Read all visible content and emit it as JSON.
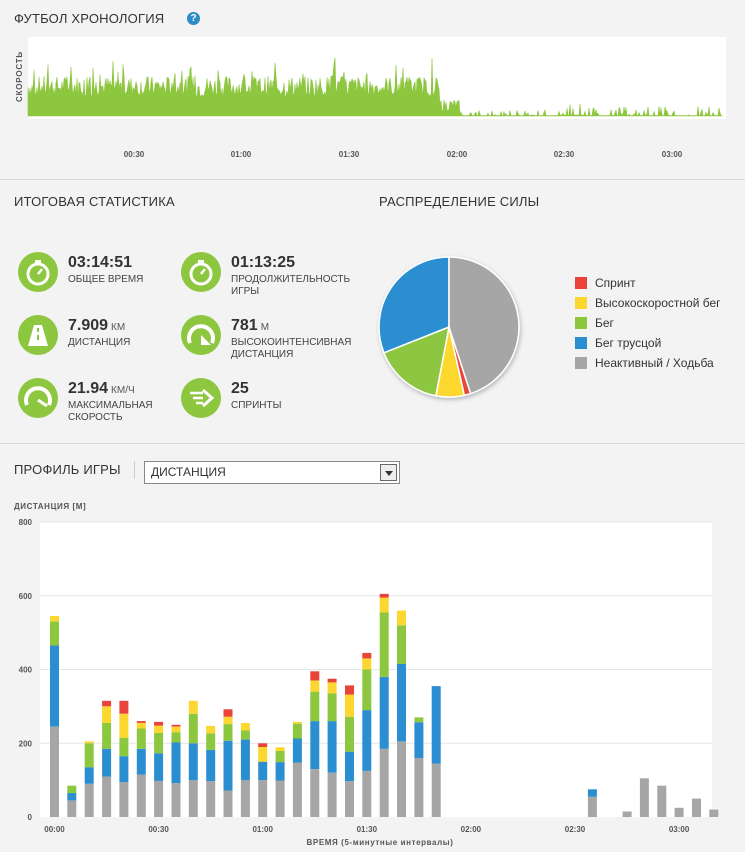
{
  "timeline": {
    "title": "ФУТБОЛ ХРОНОЛОГИЯ",
    "help": "?",
    "ylabel": "СКОРОСТЬ",
    "ticks": [
      "00:30",
      "01:00",
      "01:30",
      "02:00",
      "02:30",
      "03:00"
    ],
    "color": "#8dc63f"
  },
  "summary": {
    "title": "ИТОГОВАЯ СТАТИСТИКА",
    "stats": [
      {
        "icon": "stopwatch-icon",
        "value": "03:14:51",
        "unit": "",
        "label": "Общее время"
      },
      {
        "icon": "stopwatch-icon",
        "value": "01:13:25",
        "unit": "",
        "label": "Продолжительность игры"
      },
      {
        "icon": "road-icon",
        "value": "7.909",
        "unit": "КМ",
        "label": "Дистанция"
      },
      {
        "icon": "high-intensity-icon",
        "value": "781",
        "unit": "М",
        "label": "Высокоинтенсивная дистанция"
      },
      {
        "icon": "speedometer-icon",
        "value": "21.94",
        "unit": "КМ/Ч",
        "label": "Максимальная скорость"
      },
      {
        "icon": "sprint-icon",
        "value": "25",
        "unit": "",
        "label": "Спринты"
      }
    ]
  },
  "distribution": {
    "title": "РАСПРЕДЕЛЕНИЕ СИЛЫ",
    "legend": [
      {
        "label": "Спринт",
        "color": "#e8443a"
      },
      {
        "label": "Высокоскоростной бег",
        "color": "#fcd72f"
      },
      {
        "label": "Бег",
        "color": "#8dc63f"
      },
      {
        "label": "Бег трусцой",
        "color": "#2b8ed1"
      },
      {
        "label": "Неактивный / Ходьба",
        "color": "#a6a6a6"
      }
    ]
  },
  "profile": {
    "title": "ПРОФИЛЬ ИГРЫ",
    "select_value": "ДИСТАНЦИЯ"
  },
  "chart_data": [
    {
      "type": "pie",
      "title": "РАСПРЕДЕЛЕНИЕ СИЛЫ",
      "labels": [
        "Спринт",
        "Высокоскоростной бег",
        "Бег",
        "Бег трусцой",
        "Неактивный / Ходьба"
      ],
      "values": [
        1.5,
        6.5,
        16,
        31,
        45
      ],
      "colors": [
        "#e8443a",
        "#fcd72f",
        "#8dc63f",
        "#2b8ed1",
        "#a6a6a6"
      ]
    },
    {
      "type": "bar",
      "stacked": true,
      "ylabel": "ДИСТАНЦИЯ [М]",
      "xlabel": "ВРЕМЯ (5-минутные интервалы)",
      "ylim": [
        0,
        800
      ],
      "yticks": [
        0,
        200,
        400,
        600,
        800
      ],
      "xticks": [
        {
          "label": "00:00",
          "index": 0
        },
        {
          "label": "00:30",
          "index": 6
        },
        {
          "label": "01:00",
          "index": 12
        },
        {
          "label": "01:30",
          "index": 18
        },
        {
          "label": "02:00",
          "index": 24
        },
        {
          "label": "02:30",
          "index": 30
        },
        {
          "label": "03:00",
          "index": 36
        }
      ],
      "series": [
        {
          "name": "Неактивный / Ходьба",
          "color": "#a6a6a6",
          "values": [
            245,
            45,
            90,
            110,
            95,
            115,
            98,
            92,
            100,
            97,
            72,
            100,
            100,
            99,
            148,
            130,
            120,
            97,
            125,
            185,
            205,
            160,
            145,
            0,
            0,
            0,
            0,
            0,
            0,
            0,
            0,
            55,
            0,
            15,
            105,
            85,
            25,
            50,
            20
          ]
        },
        {
          "name": "Бег трусцой",
          "color": "#2b8ed1",
          "values": [
            220,
            20,
            45,
            75,
            70,
            70,
            75,
            110,
            100,
            85,
            135,
            110,
            50,
            50,
            65,
            130,
            140,
            80,
            165,
            195,
            210,
            97,
            210,
            0,
            0,
            0,
            0,
            0,
            0,
            0,
            0,
            20,
            0,
            0,
            0,
            0,
            0,
            0,
            0
          ]
        },
        {
          "name": "Бег",
          "color": "#8dc63f",
          "values": [
            65,
            20,
            65,
            70,
            50,
            55,
            55,
            28,
            80,
            45,
            45,
            25,
            0,
            30,
            40,
            80,
            75,
            95,
            110,
            175,
            105,
            13,
            0,
            0,
            0,
            0,
            0,
            0,
            0,
            0,
            0,
            0,
            0,
            0,
            0,
            0,
            0,
            0,
            0
          ]
        },
        {
          "name": "Высокоскоростной бег",
          "color": "#fcd72f",
          "values": [
            15,
            0,
            5,
            45,
            65,
            15,
            20,
            15,
            35,
            20,
            20,
            20,
            40,
            10,
            5,
            30,
            30,
            60,
            30,
            40,
            40,
            0,
            0,
            0,
            0,
            0,
            0,
            0,
            0,
            0,
            0,
            0,
            0,
            0,
            0,
            0,
            0,
            0,
            0
          ]
        },
        {
          "name": "Спринт",
          "color": "#e8443a",
          "values": [
            0,
            0,
            0,
            15,
            35,
            5,
            10,
            5,
            0,
            0,
            20,
            0,
            10,
            0,
            0,
            25,
            10,
            25,
            15,
            10,
            0,
            0,
            0,
            0,
            0,
            0,
            0,
            0,
            0,
            0,
            0,
            0,
            0,
            0,
            0,
            0,
            0,
            0,
            0
          ]
        }
      ]
    }
  ]
}
